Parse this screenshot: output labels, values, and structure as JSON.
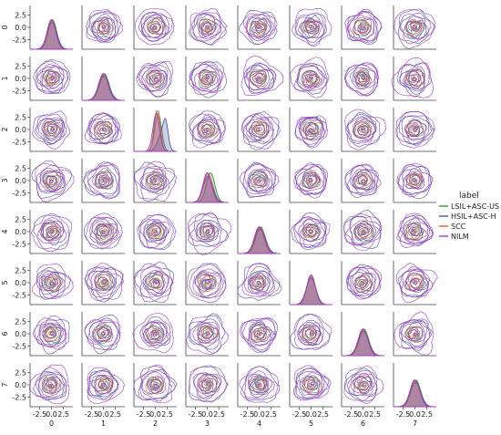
{
  "chart_data": {
    "type": "pairplot",
    "plot": "pairwise KDE contour grid with marginal KDE diagonals",
    "variables": [
      "0",
      "1",
      "2",
      "3",
      "4",
      "5",
      "6",
      "7"
    ],
    "axis_tick_labels": [
      "-2.5",
      "0.0",
      "2.5"
    ],
    "axis_range": [
      -4.5,
      4.5
    ],
    "grid": false,
    "legend": {
      "title": "label",
      "placement": "right",
      "entries": [
        {
          "name": "LSIL+ASC-US",
          "color": "#3a9a3a"
        },
        {
          "name": "HSIL+ASC-H",
          "color": "#4b55b0"
        },
        {
          "name": "SCC",
          "color": "#d8602a"
        },
        {
          "name": "NILM",
          "color": "#a23cbe"
        }
      ]
    },
    "diagonal": {
      "kind": "kde",
      "series": [
        {
          "name": "LSIL+ASC-US",
          "color": "#3a9a3a",
          "peaks": [
            {
              "v": "0",
              "mean": 0.2,
              "sd": 0.9
            },
            {
              "v": "1",
              "mean": 0.2,
              "sd": 1.0
            },
            {
              "v": "2",
              "mean": 0.6,
              "sd": 0.7
            },
            {
              "v": "3",
              "mean": 0.7,
              "sd": 0.9
            },
            {
              "v": "4",
              "mean": 0.3,
              "sd": 1.0
            },
            {
              "v": "5",
              "mean": 0.0,
              "sd": 0.9
            },
            {
              "v": "6",
              "mean": 0.2,
              "sd": 1.0
            },
            {
              "v": "7",
              "mean": 0.2,
              "sd": 1.0
            }
          ]
        },
        {
          "name": "HSIL+ASC-H",
          "color": "#4b55b0",
          "peaks": [
            {
              "v": "0",
              "mean": 0.1,
              "sd": 1.0
            },
            {
              "v": "1",
              "mean": 0.1,
              "sd": 1.1
            },
            {
              "v": "2",
              "mean": 1.4,
              "sd": 0.9
            },
            {
              "v": "3",
              "mean": 0.2,
              "sd": 1.0
            },
            {
              "v": "4",
              "mean": 0.2,
              "sd": 1.1
            },
            {
              "v": "5",
              "mean": 0.0,
              "sd": 1.0
            },
            {
              "v": "6",
              "mean": 0.1,
              "sd": 1.1
            },
            {
              "v": "7",
              "mean": 0.1,
              "sd": 1.1
            }
          ]
        },
        {
          "name": "SCC",
          "color": "#d8602a",
          "peaks": [
            {
              "v": "0",
              "mean": 0.0,
              "sd": 0.9
            },
            {
              "v": "1",
              "mean": 0.0,
              "sd": 1.0
            },
            {
              "v": "2",
              "mean": 0.4,
              "sd": 0.6
            },
            {
              "v": "3",
              "mean": 0.1,
              "sd": 0.9
            },
            {
              "v": "4",
              "mean": 0.1,
              "sd": 1.0
            },
            {
              "v": "5",
              "mean": 0.0,
              "sd": 0.9
            },
            {
              "v": "6",
              "mean": 0.0,
              "sd": 1.0
            },
            {
              "v": "7",
              "mean": 0.0,
              "sd": 1.0
            }
          ]
        },
        {
          "name": "NILM",
          "color": "#a23cbe",
          "peaks": [
            {
              "v": "0",
              "mean": 0.0,
              "sd": 0.9
            },
            {
              "v": "1",
              "mean": 0.0,
              "sd": 1.0
            },
            {
              "v": "2",
              "mean": 0.2,
              "sd": 0.7
            },
            {
              "v": "3",
              "mean": 0.0,
              "sd": 0.9
            },
            {
              "v": "4",
              "mean": 0.0,
              "sd": 1.0
            },
            {
              "v": "5",
              "mean": 0.0,
              "sd": 0.9
            },
            {
              "v": "6",
              "mean": 0.0,
              "sd": 1.0
            },
            {
              "v": "7",
              "mean": 0.0,
              "sd": 1.0
            }
          ]
        }
      ]
    },
    "off_diagonal": {
      "kind": "kde_contours",
      "center": [
        0,
        0
      ],
      "approx_extent": [
        -3.5,
        3.5
      ]
    }
  }
}
